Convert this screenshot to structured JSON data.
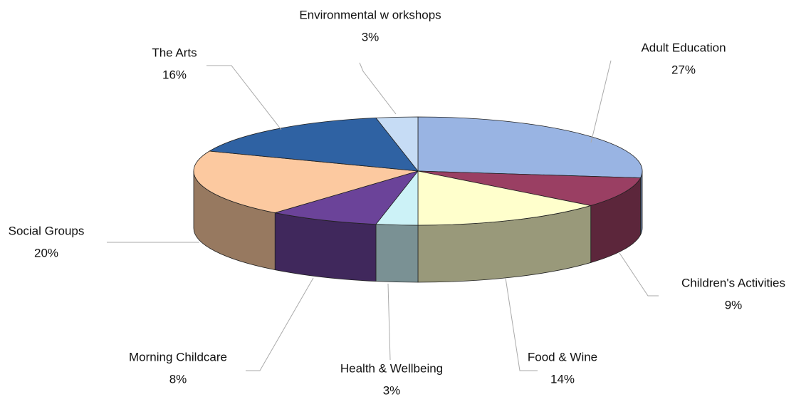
{
  "chart_data": {
    "type": "pie",
    "categories": [
      "Adult Education",
      "Children's Activities",
      "Food & Wine",
      "Health & Wellbeing",
      "Morning Childcare",
      "Social Groups",
      "The Arts",
      "Environmental w orkshops"
    ],
    "values": [
      27,
      9,
      14,
      3,
      8,
      20,
      16,
      3
    ],
    "value_labels": [
      "27%",
      "9%",
      "14%",
      "3%",
      "8%",
      "20%",
      "16%",
      "3%"
    ],
    "colors": [
      "#99b4e3",
      "#9a3f63",
      "#ffffcc",
      "#ccf2f7",
      "#6b4399",
      "#fcc9a0",
      "#2f62a3",
      "#c6dcf5"
    ],
    "3d": true
  }
}
